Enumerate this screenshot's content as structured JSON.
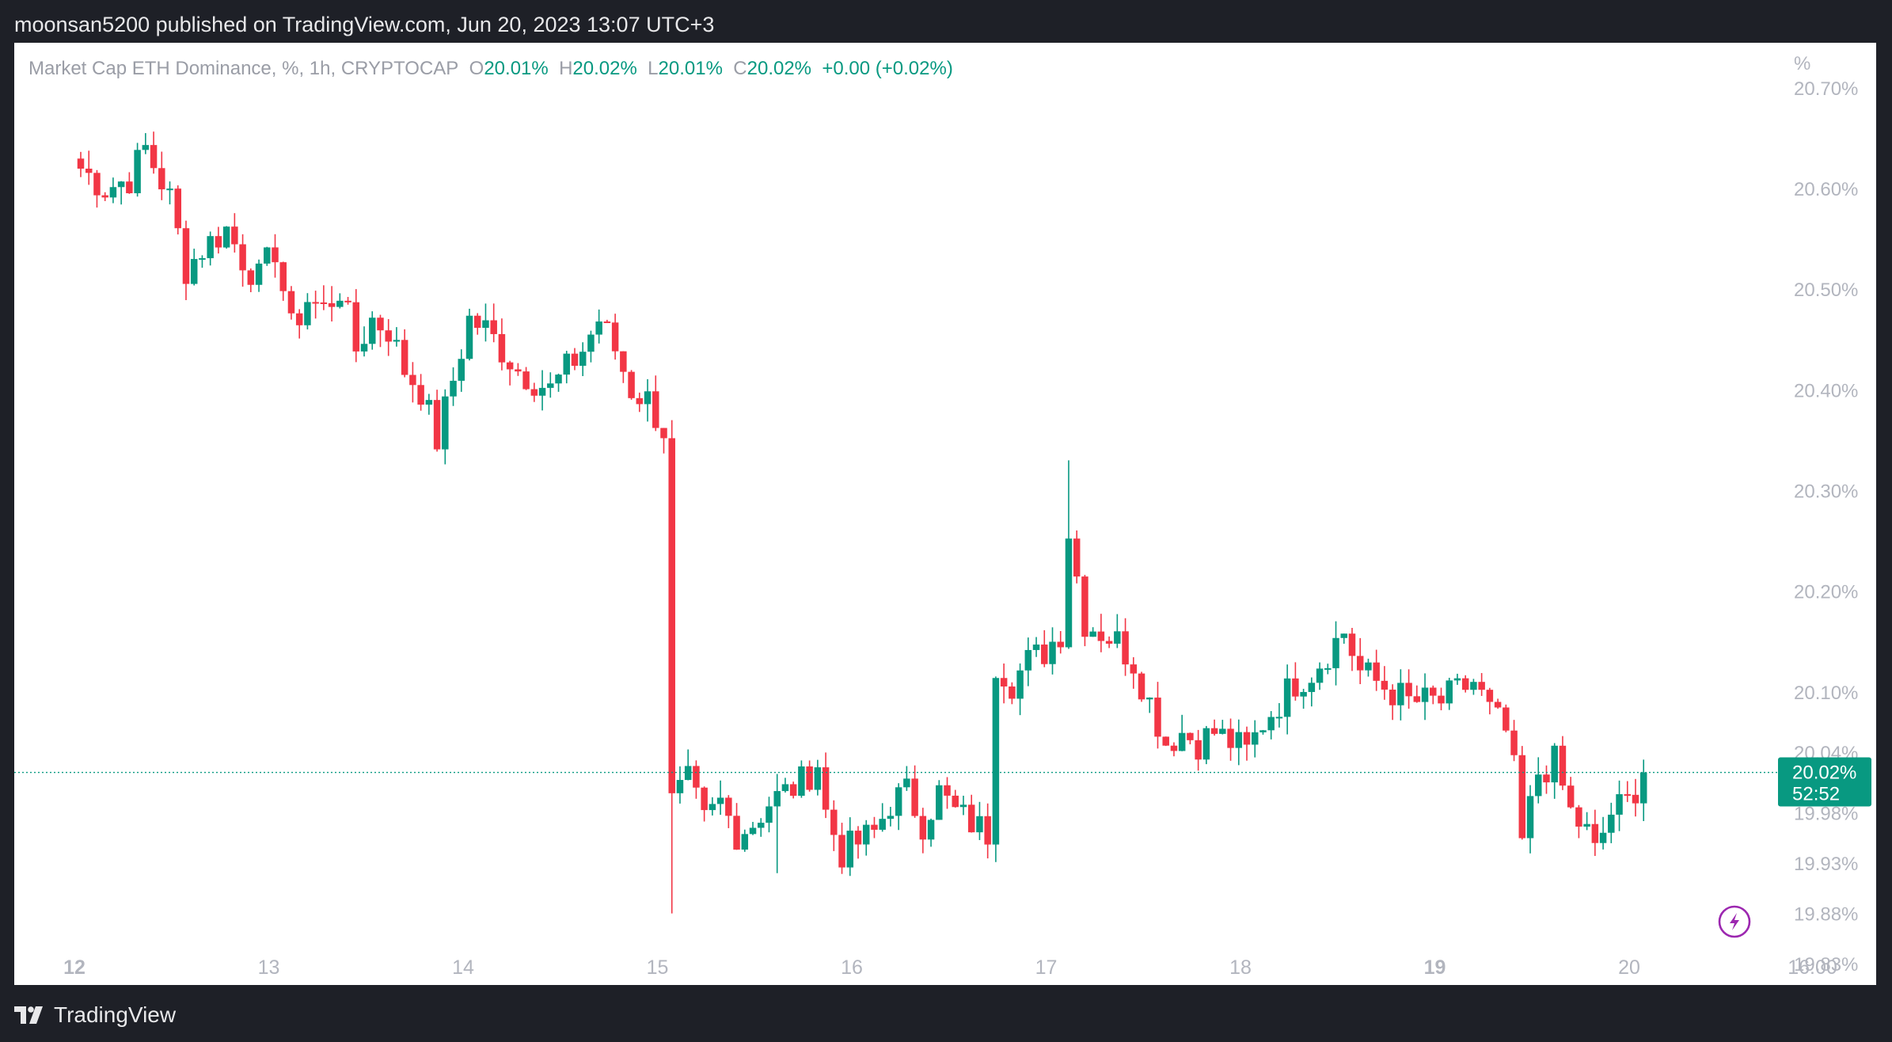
{
  "header": {
    "published_line": "moonsan5200 published on TradingView.com, Jun 20, 2023 13:07 UTC+3"
  },
  "legend": {
    "symbol": "Market Cap ETH Dominance, %, 1h, CRYPTOCAP",
    "o_label": "O",
    "o_value": "20.01%",
    "h_label": "H",
    "h_value": "20.02%",
    "l_label": "L",
    "l_value": "20.01%",
    "c_label": "C",
    "c_value": "20.02%",
    "change": "+0.00 (+0.02%)"
  },
  "price_axis": {
    "unit": "%",
    "ticks": [
      "20.70%",
      "20.60%",
      "20.50%",
      "20.40%",
      "20.30%",
      "20.20%",
      "20.10%",
      "20.04%",
      "19.98%",
      "19.93%",
      "19.88%",
      "19.83%"
    ]
  },
  "time_axis": {
    "ticks": [
      {
        "label": "12",
        "bold": true
      },
      {
        "label": "13",
        "bold": false
      },
      {
        "label": "14",
        "bold": false
      },
      {
        "label": "15",
        "bold": false
      },
      {
        "label": "16",
        "bold": false
      },
      {
        "label": "17",
        "bold": false
      },
      {
        "label": "18",
        "bold": false
      },
      {
        "label": "19",
        "bold": true
      },
      {
        "label": "20",
        "bold": false
      },
      {
        "label": "16:00",
        "bold": false
      }
    ]
  },
  "last_price": {
    "value": "20.02%",
    "countdown": "52:52"
  },
  "colors": {
    "up": "#089981",
    "down": "#f23645",
    "axis_text": "#b2b5be",
    "background": "#ffffff",
    "frame": "#1e2027"
  },
  "icons": {
    "alert": "lightning-icon",
    "logo": "tradingview-logo-icon"
  },
  "footer": {
    "brand": "TradingView"
  },
  "chart_data": {
    "type": "candlestick",
    "title": "Market Cap ETH Dominance, %, 1h, CRYPTOCAP",
    "y_unit": "%",
    "ylim": [
      19.8,
      20.73
    ],
    "x_range_days": [
      "12",
      "13",
      "14",
      "15",
      "16",
      "17",
      "18",
      "19",
      "20"
    ],
    "interval": "1h",
    "last_value": 20.02,
    "path_points": [
      [
        0,
        20.62
      ],
      [
        3,
        20.6
      ],
      [
        6,
        20.61
      ],
      [
        8,
        20.64
      ],
      [
        11,
        20.59
      ],
      [
        13,
        20.52
      ],
      [
        15,
        20.54
      ],
      [
        18,
        20.56
      ],
      [
        20,
        20.53
      ],
      [
        22,
        20.51
      ],
      [
        24,
        20.54
      ],
      [
        26,
        20.46
      ],
      [
        28,
        20.49
      ],
      [
        30,
        20.48
      ],
      [
        32,
        20.5
      ],
      [
        34,
        20.44
      ],
      [
        36,
        20.47
      ],
      [
        38,
        20.46
      ],
      [
        40,
        20.42
      ],
      [
        42,
        20.4
      ],
      [
        44,
        20.35
      ],
      [
        46,
        20.41
      ],
      [
        48,
        20.47
      ],
      [
        50,
        20.46
      ],
      [
        52,
        20.44
      ],
      [
        54,
        20.42
      ],
      [
        56,
        20.41
      ],
      [
        58,
        20.4
      ],
      [
        60,
        20.42
      ],
      [
        62,
        20.44
      ],
      [
        64,
        20.47
      ],
      [
        66,
        20.44
      ],
      [
        68,
        20.4
      ],
      [
        70,
        20.39
      ],
      [
        72,
        20.36
      ],
      [
        73,
        19.99
      ],
      [
        75,
        20.01
      ],
      [
        77,
        19.97
      ],
      [
        79,
        19.99
      ],
      [
        81,
        19.96
      ],
      [
        83,
        19.97
      ],
      [
        85,
        19.99
      ],
      [
        87,
        20.0
      ],
      [
        89,
        20.01
      ],
      [
        91,
        20.03
      ],
      [
        92,
        19.98
      ],
      [
        94,
        19.94
      ],
      [
        96,
        19.95
      ],
      [
        98,
        19.96
      ],
      [
        100,
        19.99
      ],
      [
        102,
        20.0
      ],
      [
        104,
        19.97
      ],
      [
        106,
        20.0
      ],
      [
        108,
        19.98
      ],
      [
        110,
        19.97
      ],
      [
        112,
        19.96
      ],
      [
        113,
        20.13
      ],
      [
        115,
        20.11
      ],
      [
        117,
        20.13
      ],
      [
        119,
        20.14
      ],
      [
        121,
        20.16
      ],
      [
        122,
        20.26
      ],
      [
        124,
        20.17
      ],
      [
        126,
        20.16
      ],
      [
        128,
        20.15
      ],
      [
        130,
        20.13
      ],
      [
        132,
        20.09
      ],
      [
        134,
        20.05
      ],
      [
        136,
        20.06
      ],
      [
        138,
        20.05
      ],
      [
        140,
        20.06
      ],
      [
        142,
        20.05
      ],
      [
        144,
        20.04
      ],
      [
        146,
        20.07
      ],
      [
        148,
        20.09
      ],
      [
        150,
        20.11
      ],
      [
        152,
        20.12
      ],
      [
        154,
        20.14
      ],
      [
        156,
        20.16
      ],
      [
        158,
        20.12
      ],
      [
        160,
        20.11
      ],
      [
        162,
        20.1
      ],
      [
        164,
        20.09
      ],
      [
        166,
        20.09
      ],
      [
        168,
        20.09
      ],
      [
        170,
        20.1
      ],
      [
        172,
        20.11
      ],
      [
        174,
        20.08
      ],
      [
        176,
        20.06
      ],
      [
        177,
        20.02
      ],
      [
        178,
        19.95
      ],
      [
        180,
        20.02
      ],
      [
        182,
        20.03
      ],
      [
        184,
        19.98
      ],
      [
        186,
        19.96
      ],
      [
        187,
        19.94
      ],
      [
        189,
        19.98
      ],
      [
        191,
        19.99
      ],
      [
        193,
        20.02
      ]
    ]
  }
}
